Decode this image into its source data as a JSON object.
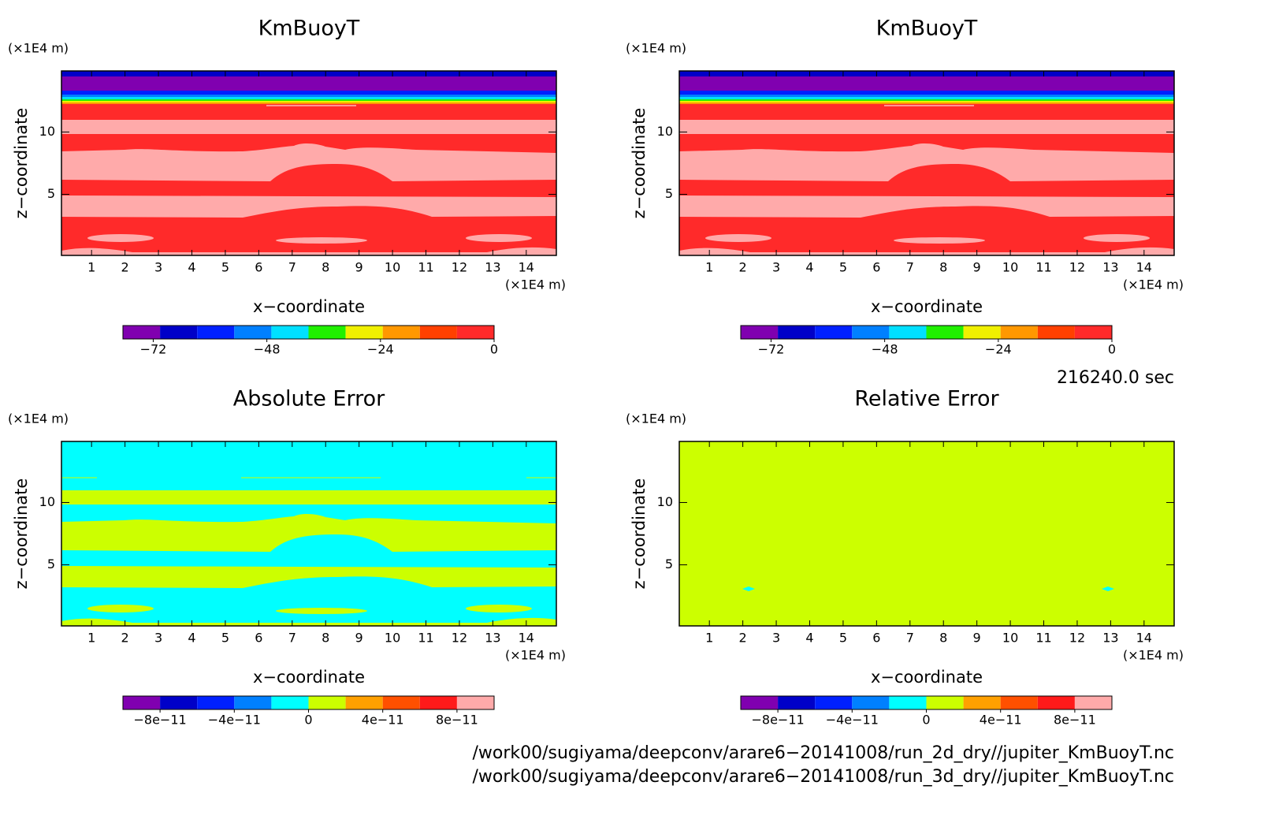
{
  "chart_data": [
    {
      "type": "contour",
      "title": "KmBuoyT",
      "xlabel": "x−coordinate",
      "ylabel": "z−coordinate",
      "xunit": "(×1E4 m)",
      "yunit": "(×1E4 m)",
      "xlim": [
        0.1,
        14.9
      ],
      "ylim": [
        0.1,
        14.9
      ],
      "xticks": [
        1,
        2,
        3,
        4,
        5,
        6,
        7,
        8,
        9,
        10,
        11,
        12,
        13,
        14
      ],
      "yticks": [
        5,
        10
      ],
      "colorbar": {
        "lim": [
          -78.4,
          0
        ],
        "colors": [
          "#8000b0",
          "#0000c8",
          "#0020ff",
          "#0080ff",
          "#00e0ff",
          "#20f000",
          "#f0f000",
          "#ff9800",
          "#ff4000",
          "#ff2a2a"
        ],
        "ticks": [
          {
            "value": -72,
            "label": "−72"
          },
          {
            "value": -48,
            "label": "−48"
          },
          {
            "value": -24,
            "label": "−24"
          },
          0
        ]
      }
    },
    {
      "type": "contour",
      "title": "KmBuoyT",
      "xlabel": "x−coordinate",
      "ylabel": "z−coordinate",
      "xunit": "(×1E4 m)",
      "yunit": "(×1E4 m)",
      "xlim": [
        0.1,
        14.9
      ],
      "ylim": [
        0.1,
        14.9
      ],
      "xticks": [
        1,
        2,
        3,
        4,
        5,
        6,
        7,
        8,
        9,
        10,
        11,
        12,
        13,
        14
      ],
      "yticks": [
        5,
        10
      ],
      "colorbar": {
        "lim": [
          -78.4,
          0
        ],
        "colors": [
          "#8000b0",
          "#0000c8",
          "#0020ff",
          "#0080ff",
          "#00e0ff",
          "#20f000",
          "#f0f000",
          "#ff9800",
          "#ff4000",
          "#ff2a2a"
        ],
        "ticks": [
          {
            "value": -72,
            "label": "−72"
          },
          {
            "value": -48,
            "label": "−48"
          },
          {
            "value": -24,
            "label": "−24"
          },
          0
        ]
      }
    },
    {
      "type": "contour",
      "title": "Absolute Error",
      "xlabel": "x−coordinate",
      "ylabel": "z−coordinate",
      "xunit": "(×1E4 m)",
      "yunit": "(×1E4 m)",
      "xlim": [
        0.1,
        14.9
      ],
      "ylim": [
        0.1,
        14.9
      ],
      "xticks": [
        1,
        2,
        3,
        4,
        5,
        6,
        7,
        8,
        9,
        10,
        11,
        12,
        13,
        14
      ],
      "yticks": [
        5,
        10
      ],
      "colorbar": {
        "lim": [
          -1e-10,
          1e-10
        ],
        "colors": [
          "#8000b0",
          "#0000c8",
          "#0020ff",
          "#0080ff",
          "#00ffff",
          "#ccff00",
          "#ffa000",
          "#ff5000",
          "#ff1a1a",
          "#ffaaaa"
        ],
        "ticks": [
          {
            "value": -8e-11,
            "label": "−8e−11"
          },
          {
            "value": -4e-11,
            "label": "−4e−11"
          },
          0,
          {
            "value": 4e-11,
            "label": "4e−11"
          },
          {
            "value": 8e-11,
            "label": "8e−11"
          }
        ]
      }
    },
    {
      "type": "contour",
      "title": "Relative Error",
      "xlabel": "x−coordinate",
      "ylabel": "z−coordinate",
      "xunit": "(×1E4 m)",
      "yunit": "(×1E4 m)",
      "xlim": [
        0.1,
        14.9
      ],
      "ylim": [
        0.1,
        14.9
      ],
      "xticks": [
        1,
        2,
        3,
        4,
        5,
        6,
        7,
        8,
        9,
        10,
        11,
        12,
        13,
        14
      ],
      "yticks": [
        5,
        10
      ],
      "colorbar": {
        "lim": [
          -1e-10,
          1e-10
        ],
        "colors": [
          "#8000b0",
          "#0000c8",
          "#0020ff",
          "#0080ff",
          "#00ffff",
          "#ccff00",
          "#ffa000",
          "#ff5000",
          "#ff1a1a",
          "#ffaaaa"
        ],
        "ticks": [
          {
            "value": -8e-11,
            "label": "−8e−11"
          },
          {
            "value": -4e-11,
            "label": "−4e−11"
          },
          0,
          {
            "value": 4e-11,
            "label": "4e−11"
          },
          {
            "value": 8e-11,
            "label": "8e−11"
          }
        ]
      }
    }
  ],
  "footer": {
    "time": "216240.0 sec",
    "files": [
      "/work00/sugiyama/deepconv/arare6−20141008/run_2d_dry//jupiter_KmBuoyT.nc",
      "/work00/sugiyama/deepconv/arare6−20141008/run_3d_dry//jupiter_KmBuoyT.nc"
    ]
  }
}
